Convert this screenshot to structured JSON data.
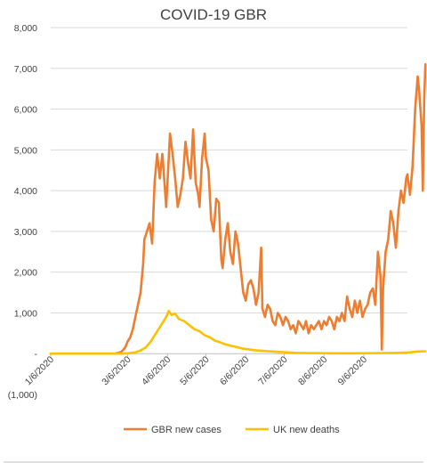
{
  "chart_data": {
    "type": "line",
    "title": "COVID-19 GBR",
    "xlabel": "",
    "ylabel": "",
    "ylim": [
      -1000,
      8000
    ],
    "y_ticks": [
      8000,
      7000,
      6000,
      5000,
      4000,
      3000,
      2000,
      1000,
      0,
      -1000
    ],
    "y_tick_labels": [
      "8,000",
      "7,000",
      "6,000",
      "5,000",
      "4,000",
      "3,000",
      "2,000",
      "1,000",
      "-",
      "(1,000)"
    ],
    "x_tick_labels": [
      "1/6/2020",
      "3/6/2020",
      "4/6/2020",
      "5/6/2020",
      "6/6/2020",
      "7/6/2020",
      "8/6/2020",
      "9/6/2020"
    ],
    "x_tick_days": [
      0,
      60,
      91,
      121,
      152,
      182,
      213,
      244
    ],
    "xlim_days": [
      0,
      278
    ],
    "grid": true,
    "legend_position": "bottom",
    "series": [
      {
        "name": "GBR new cases",
        "color": "#ed7d31",
        "points": [
          [
            0,
            0
          ],
          [
            30,
            0
          ],
          [
            50,
            0
          ],
          [
            55,
            40
          ],
          [
            58,
            150
          ],
          [
            60,
            300
          ],
          [
            62,
            400
          ],
          [
            64,
            600
          ],
          [
            66,
            900
          ],
          [
            68,
            1200
          ],
          [
            70,
            1500
          ],
          [
            72,
            2200
          ],
          [
            73,
            2800
          ],
          [
            75,
            3000
          ],
          [
            77,
            3200
          ],
          [
            79,
            2700
          ],
          [
            81,
            4200
          ],
          [
            83,
            4900
          ],
          [
            85,
            4300
          ],
          [
            87,
            4900
          ],
          [
            88,
            4500
          ],
          [
            90,
            3600
          ],
          [
            92,
            4800
          ],
          [
            93,
            5400
          ],
          [
            95,
            4900
          ],
          [
            97,
            4300
          ],
          [
            99,
            3600
          ],
          [
            101,
            3900
          ],
          [
            103,
            4300
          ],
          [
            105,
            5200
          ],
          [
            107,
            4700
          ],
          [
            109,
            4300
          ],
          [
            111,
            5500
          ],
          [
            112,
            4800
          ],
          [
            113,
            4200
          ],
          [
            115,
            3900
          ],
          [
            116,
            3600
          ],
          [
            118,
            4800
          ],
          [
            120,
            5400
          ],
          [
            121,
            4800
          ],
          [
            123,
            4500
          ],
          [
            125,
            3300
          ],
          [
            127,
            3000
          ],
          [
            129,
            3800
          ],
          [
            131,
            3700
          ],
          [
            133,
            2300
          ],
          [
            134,
            2100
          ],
          [
            136,
            2800
          ],
          [
            138,
            3200
          ],
          [
            140,
            2500
          ],
          [
            142,
            2200
          ],
          [
            144,
            3000
          ],
          [
            146,
            2700
          ],
          [
            148,
            2100
          ],
          [
            150,
            1500
          ],
          [
            152,
            1300
          ],
          [
            154,
            1700
          ],
          [
            156,
            1800
          ],
          [
            158,
            1600
          ],
          [
            160,
            1200
          ],
          [
            162,
            1500
          ],
          [
            164,
            2600
          ],
          [
            165,
            1100
          ],
          [
            167,
            900
          ],
          [
            169,
            1200
          ],
          [
            171,
            1100
          ],
          [
            173,
            800
          ],
          [
            175,
            700
          ],
          [
            177,
            1000
          ],
          [
            179,
            900
          ],
          [
            181,
            700
          ],
          [
            183,
            900
          ],
          [
            185,
            800
          ],
          [
            187,
            600
          ],
          [
            189,
            700
          ],
          [
            191,
            500
          ],
          [
            193,
            800
          ],
          [
            195,
            700
          ],
          [
            197,
            600
          ],
          [
            199,
            800
          ],
          [
            201,
            500
          ],
          [
            203,
            700
          ],
          [
            205,
            600
          ],
          [
            207,
            700
          ],
          [
            209,
            800
          ],
          [
            211,
            600
          ],
          [
            213,
            800
          ],
          [
            215,
            700
          ],
          [
            217,
            900
          ],
          [
            219,
            800
          ],
          [
            221,
            600
          ],
          [
            223,
            900
          ],
          [
            225,
            800
          ],
          [
            227,
            1000
          ],
          [
            229,
            800
          ],
          [
            231,
            1400
          ],
          [
            233,
            1100
          ],
          [
            235,
            900
          ],
          [
            237,
            1300
          ],
          [
            239,
            1000
          ],
          [
            241,
            1300
          ],
          [
            243,
            900
          ],
          [
            245,
            1100
          ],
          [
            247,
            1200
          ],
          [
            249,
            1500
          ],
          [
            251,
            1600
          ],
          [
            253,
            1200
          ],
          [
            255,
            2500
          ],
          [
            257,
            1900
          ],
          [
            258,
            100
          ],
          [
            259,
            1600
          ],
          [
            261,
            2500
          ],
          [
            263,
            2800
          ],
          [
            265,
            3500
          ],
          [
            267,
            3200
          ],
          [
            269,
            2600
          ],
          [
            271,
            3500
          ],
          [
            273,
            4000
          ],
          [
            275,
            3700
          ],
          [
            277,
            4300
          ],
          [
            278,
            4400
          ],
          [
            280,
            3900
          ],
          [
            282,
            4600
          ],
          [
            284,
            6000
          ],
          [
            286,
            6800
          ],
          [
            287,
            6500
          ],
          [
            289,
            5600
          ],
          [
            290,
            4000
          ],
          [
            291,
            6200
          ],
          [
            292,
            7100
          ]
        ]
      },
      {
        "name": "UK new deaths",
        "color": "#ffc000",
        "points": [
          [
            0,
            0
          ],
          [
            55,
            0
          ],
          [
            60,
            10
          ],
          [
            66,
            30
          ],
          [
            70,
            80
          ],
          [
            74,
            150
          ],
          [
            78,
            300
          ],
          [
            82,
            500
          ],
          [
            86,
            700
          ],
          [
            90,
            900
          ],
          [
            92,
            1050
          ],
          [
            94,
            950
          ],
          [
            97,
            980
          ],
          [
            100,
            850
          ],
          [
            104,
            800
          ],
          [
            108,
            700
          ],
          [
            112,
            600
          ],
          [
            116,
            550
          ],
          [
            120,
            450
          ],
          [
            124,
            400
          ],
          [
            128,
            320
          ],
          [
            132,
            280
          ],
          [
            136,
            230
          ],
          [
            140,
            200
          ],
          [
            145,
            160
          ],
          [
            150,
            120
          ],
          [
            155,
            100
          ],
          [
            160,
            80
          ],
          [
            170,
            60
          ],
          [
            180,
            40
          ],
          [
            190,
            20
          ],
          [
            200,
            15
          ],
          [
            220,
            10
          ],
          [
            240,
            10
          ],
          [
            260,
            15
          ],
          [
            270,
            20
          ],
          [
            280,
            30
          ],
          [
            285,
            50
          ],
          [
            292,
            60
          ]
        ]
      }
    ]
  }
}
